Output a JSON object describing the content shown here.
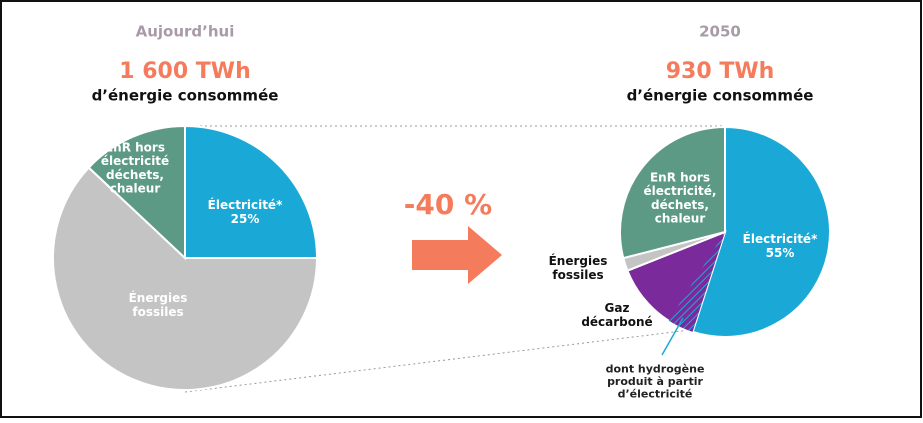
{
  "chart_data": [
    {
      "type": "pie",
      "title": "Aujourd’hui",
      "total": "1 600 TWh",
      "subtitle": "d’énergie consommée",
      "categories": [
        [
          "Électricité*"
        ],
        [
          "Énergies",
          "fossiles"
        ],
        [
          "EnR hors",
          "électricité",
          "déchets,",
          "chaleur"
        ]
      ],
      "values": [
        25,
        62,
        13
      ],
      "value_labels": [
        "25%",
        null,
        null
      ],
      "colors": [
        "#1aa9d6",
        "#c4c4c4",
        "#5c9a86"
      ]
    },
    {
      "type": "pie",
      "title": "2050",
      "total": "930 TWh",
      "subtitle": "d’énergie consommée",
      "categories": [
        [
          "Électricité*"
        ],
        [
          "Gaz",
          "décarboné"
        ],
        [
          "Énergies",
          "fossiles"
        ],
        [
          "EnR hors",
          "électricité,",
          "déchets,",
          "chaleur"
        ]
      ],
      "values": [
        55,
        14,
        2,
        29
      ],
      "value_labels": [
        "55%",
        null,
        null,
        null
      ],
      "colors": [
        "#1aa9d6",
        "#7b2a9c",
        "#c4c4c4",
        "#5c9a86"
      ],
      "hydrogen": {
        "label": [
          "dont hydrogène",
          "produit à partir",
          "d’électricité"
        ],
        "value": 4
      }
    }
  ],
  "annotation": "-40 %"
}
